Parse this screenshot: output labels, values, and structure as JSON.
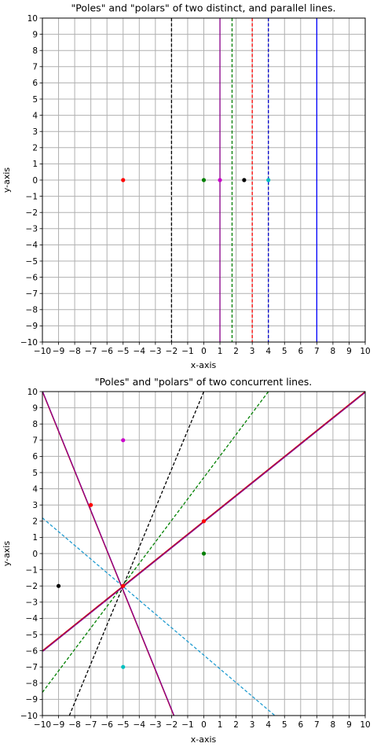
{
  "chart_data": [
    {
      "type": "line",
      "title": "\"Poles\" and \"polars\" of two distinct, and parallel lines.",
      "xlabel": "x-axis",
      "ylabel": "y-axis",
      "xlim": [
        -10,
        10
      ],
      "ylim": [
        -10,
        10
      ],
      "ticks": [
        -10,
        -9,
        -8,
        -7,
        -6,
        -5,
        -4,
        -3,
        -2,
        -1,
        0,
        1,
        2,
        3,
        4,
        5,
        6,
        7,
        8,
        9,
        10
      ],
      "grid": true,
      "lines": [
        {
          "kind": "vertical",
          "x": -2,
          "color": "#000000",
          "dash": true
        },
        {
          "kind": "vertical",
          "x": 1,
          "color": "#8b008b",
          "dash": false
        },
        {
          "kind": "vertical",
          "x": 1.75,
          "color": "#008000",
          "dash": true
        },
        {
          "kind": "vertical",
          "x": 3,
          "color": "#ff0000",
          "dash": true
        },
        {
          "kind": "vertical",
          "x": 4,
          "color": "#0000cd",
          "dash": true
        },
        {
          "kind": "vertical",
          "x": 7,
          "color": "#0000ff",
          "dash": false
        }
      ],
      "points": [
        {
          "x": -5,
          "y": 0,
          "color": "#ff0000"
        },
        {
          "x": 0,
          "y": 0,
          "color": "#008000"
        },
        {
          "x": 1,
          "y": 0,
          "color": "#cc00cc"
        },
        {
          "x": 2.5,
          "y": 0,
          "color": "#000000"
        },
        {
          "x": 4,
          "y": 0,
          "color": "#00bfbf"
        }
      ]
    },
    {
      "type": "line",
      "title": "\"Poles\" and \"polars\" of two concurrent lines.",
      "xlabel": "x-axis",
      "ylabel": "y-axis",
      "xlim": [
        -10,
        10
      ],
      "ylim": [
        -10,
        10
      ],
      "ticks": [
        -10,
        -9,
        -8,
        -7,
        -6,
        -5,
        -4,
        -3,
        -2,
        -1,
        0,
        1,
        2,
        3,
        4,
        5,
        6,
        7,
        8,
        9,
        10
      ],
      "grid": true,
      "lines": [
        {
          "kind": "segment",
          "from": [
            -8.33,
            -10
          ],
          "to": [
            0,
            10
          ],
          "color": "#000000",
          "dash": true
        },
        {
          "kind": "segment",
          "from": [
            -10,
            -8.57
          ],
          "to": [
            4,
            10
          ],
          "color": "#008000",
          "dash": true
        },
        {
          "kind": "segment",
          "from": [
            -10,
            2.2
          ],
          "to": [
            4.4,
            -10
          ],
          "color": "#1f9bd0",
          "dash": true
        },
        {
          "kind": "segment",
          "from": [
            -10,
            10
          ],
          "to": [
            -1.86,
            -10
          ],
          "color": "#cc0000",
          "dash": false
        },
        {
          "kind": "segment",
          "from": [
            -10,
            10
          ],
          "to": [
            -1.86,
            -10
          ],
          "color": "#8b008b",
          "dash": false,
          "offset": 0.6
        },
        {
          "kind": "segment",
          "from": [
            -10,
            -6
          ],
          "to": [
            10,
            10
          ],
          "color": "#cc0000",
          "dash": false
        },
        {
          "kind": "segment",
          "from": [
            -10,
            -6
          ],
          "to": [
            10,
            10
          ],
          "color": "#8b008b",
          "dash": false,
          "offset": 0.6
        }
      ],
      "points": [
        {
          "x": -5,
          "y": 7,
          "color": "#cc00cc"
        },
        {
          "x": -7,
          "y": 3,
          "color": "#ff0000"
        },
        {
          "x": 0,
          "y": 2,
          "color": "#ff0000"
        },
        {
          "x": 0,
          "y": 0,
          "color": "#008000"
        },
        {
          "x": -9,
          "y": -2,
          "color": "#000000"
        },
        {
          "x": -5,
          "y": -2,
          "color": "#ff0000"
        },
        {
          "x": -5,
          "y": -7,
          "color": "#00bfbf"
        }
      ]
    }
  ]
}
